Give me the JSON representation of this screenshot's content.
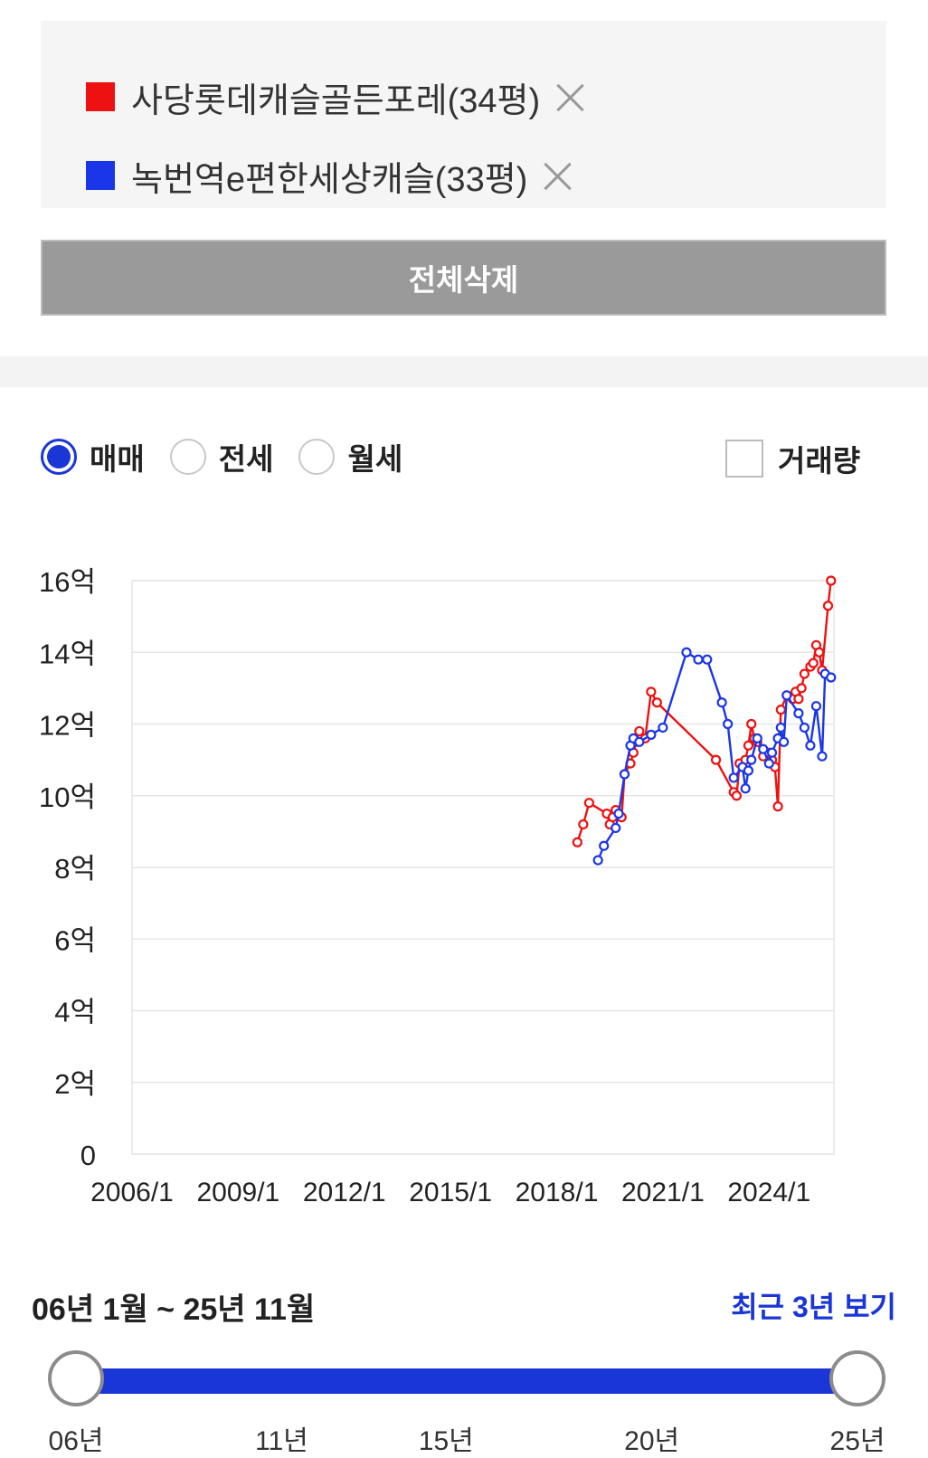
{
  "compare": {
    "items": [
      {
        "label": "사당롯데캐슬골든포레(34평)",
        "color": "#ee1111"
      },
      {
        "label": "녹번역e편한세상캐슬(33평)",
        "color": "#1a36e8"
      }
    ],
    "delete_all_label": "전체삭제"
  },
  "filters": {
    "options": [
      "매매",
      "전세",
      "월세"
    ],
    "selected": "매매",
    "volume_label": "거래량",
    "volume_checked": false
  },
  "chart_data": {
    "type": "line",
    "xlabel": "",
    "ylabel": "",
    "x_ticks": [
      "2006/1",
      "2009/1",
      "2012/1",
      "2015/1",
      "2018/1",
      "2021/1",
      "2024/1"
    ],
    "x_range": [
      "2006-01",
      "2025-11"
    ],
    "y_ticks": [
      "0",
      "2억",
      "4억",
      "6억",
      "8억",
      "10억",
      "12억",
      "14억",
      "16억"
    ],
    "ylim": [
      0,
      16
    ],
    "grid": true,
    "series": [
      {
        "name": "사당롯데캐슬골든포레(34평)",
        "color": "#ee1111",
        "points": [
          [
            "2018-08",
            8.7
          ],
          [
            "2018-10",
            9.2
          ],
          [
            "2018-12",
            9.8
          ],
          [
            "2019-06",
            9.5
          ],
          [
            "2019-07",
            9.2
          ],
          [
            "2019-08",
            9.4
          ],
          [
            "2019-09",
            9.6
          ],
          [
            "2019-11",
            9.4
          ],
          [
            "2019-12",
            10.6
          ],
          [
            "2020-02",
            10.9
          ],
          [
            "2020-03",
            11.2
          ],
          [
            "2020-04",
            11.5
          ],
          [
            "2020-05",
            11.8
          ],
          [
            "2020-07",
            11.6
          ],
          [
            "2020-09",
            12.9
          ],
          [
            "2020-11",
            12.6
          ],
          [
            "2022-07",
            11.0
          ],
          [
            "2023-01",
            10.1
          ],
          [
            "2023-02",
            10.0
          ],
          [
            "2023-03",
            10.9
          ],
          [
            "2023-05",
            11.0
          ],
          [
            "2023-06",
            11.4
          ],
          [
            "2023-07",
            12.0
          ],
          [
            "2023-08",
            11.6
          ],
          [
            "2023-09",
            11.5
          ],
          [
            "2023-11",
            11.1
          ],
          [
            "2024-01",
            11.2
          ],
          [
            "2024-02",
            11.0
          ],
          [
            "2024-03",
            10.8
          ],
          [
            "2024-04",
            9.7
          ],
          [
            "2024-05",
            12.4
          ],
          [
            "2024-07",
            12.8
          ],
          [
            "2024-09",
            12.7
          ],
          [
            "2024-10",
            12.9
          ],
          [
            "2024-11",
            12.7
          ],
          [
            "2024-12",
            13.0
          ],
          [
            "2025-01",
            13.4
          ],
          [
            "2025-03",
            13.6
          ],
          [
            "2025-04",
            13.7
          ],
          [
            "2025-05",
            14.2
          ],
          [
            "2025-06",
            14.0
          ],
          [
            "2025-07",
            13.5
          ],
          [
            "2025-09",
            15.3
          ],
          [
            "2025-10",
            16.0
          ]
        ]
      },
      {
        "name": "녹번역e편한세상캐슬(33평)",
        "color": "#1a36e8",
        "points": [
          [
            "2019-03",
            8.2
          ],
          [
            "2019-05",
            8.6
          ],
          [
            "2019-09",
            9.1
          ],
          [
            "2019-10",
            9.5
          ],
          [
            "2019-12",
            10.6
          ],
          [
            "2020-02",
            11.4
          ],
          [
            "2020-03",
            11.6
          ],
          [
            "2020-05",
            11.5
          ],
          [
            "2020-09",
            11.7
          ],
          [
            "2021-01",
            11.9
          ],
          [
            "2021-09",
            14.0
          ],
          [
            "2022-01",
            13.8
          ],
          [
            "2022-04",
            13.8
          ],
          [
            "2022-09",
            12.6
          ],
          [
            "2022-11",
            12.0
          ],
          [
            "2023-01",
            10.5
          ],
          [
            "2023-04",
            10.8
          ],
          [
            "2023-05",
            10.2
          ],
          [
            "2023-06",
            10.7
          ],
          [
            "2023-07",
            11.0
          ],
          [
            "2023-09",
            11.6
          ],
          [
            "2023-11",
            11.3
          ],
          [
            "2024-01",
            10.9
          ],
          [
            "2024-02",
            11.2
          ],
          [
            "2024-04",
            11.6
          ],
          [
            "2024-05",
            11.9
          ],
          [
            "2024-06",
            11.5
          ],
          [
            "2024-07",
            12.8
          ],
          [
            "2024-11",
            12.3
          ],
          [
            "2025-01",
            11.9
          ],
          [
            "2025-03",
            11.4
          ],
          [
            "2025-05",
            12.5
          ],
          [
            "2025-07",
            11.1
          ],
          [
            "2025-08",
            13.4
          ],
          [
            "2025-10",
            13.3
          ]
        ]
      }
    ]
  },
  "period": {
    "range_label": "06년 1월 ~ 25년 11월",
    "recent_label": "최근 3년 보기",
    "start_year": 2006,
    "end_year": 2025,
    "selected_start": 2006,
    "selected_end": 2025,
    "tick_labels": [
      {
        "label": "06년",
        "year": 2006
      },
      {
        "label": "11년",
        "year": 2011
      },
      {
        "label": "15년",
        "year": 2015
      },
      {
        "label": "20년",
        "year": 2020
      },
      {
        "label": "25년",
        "year": 2025
      }
    ]
  }
}
